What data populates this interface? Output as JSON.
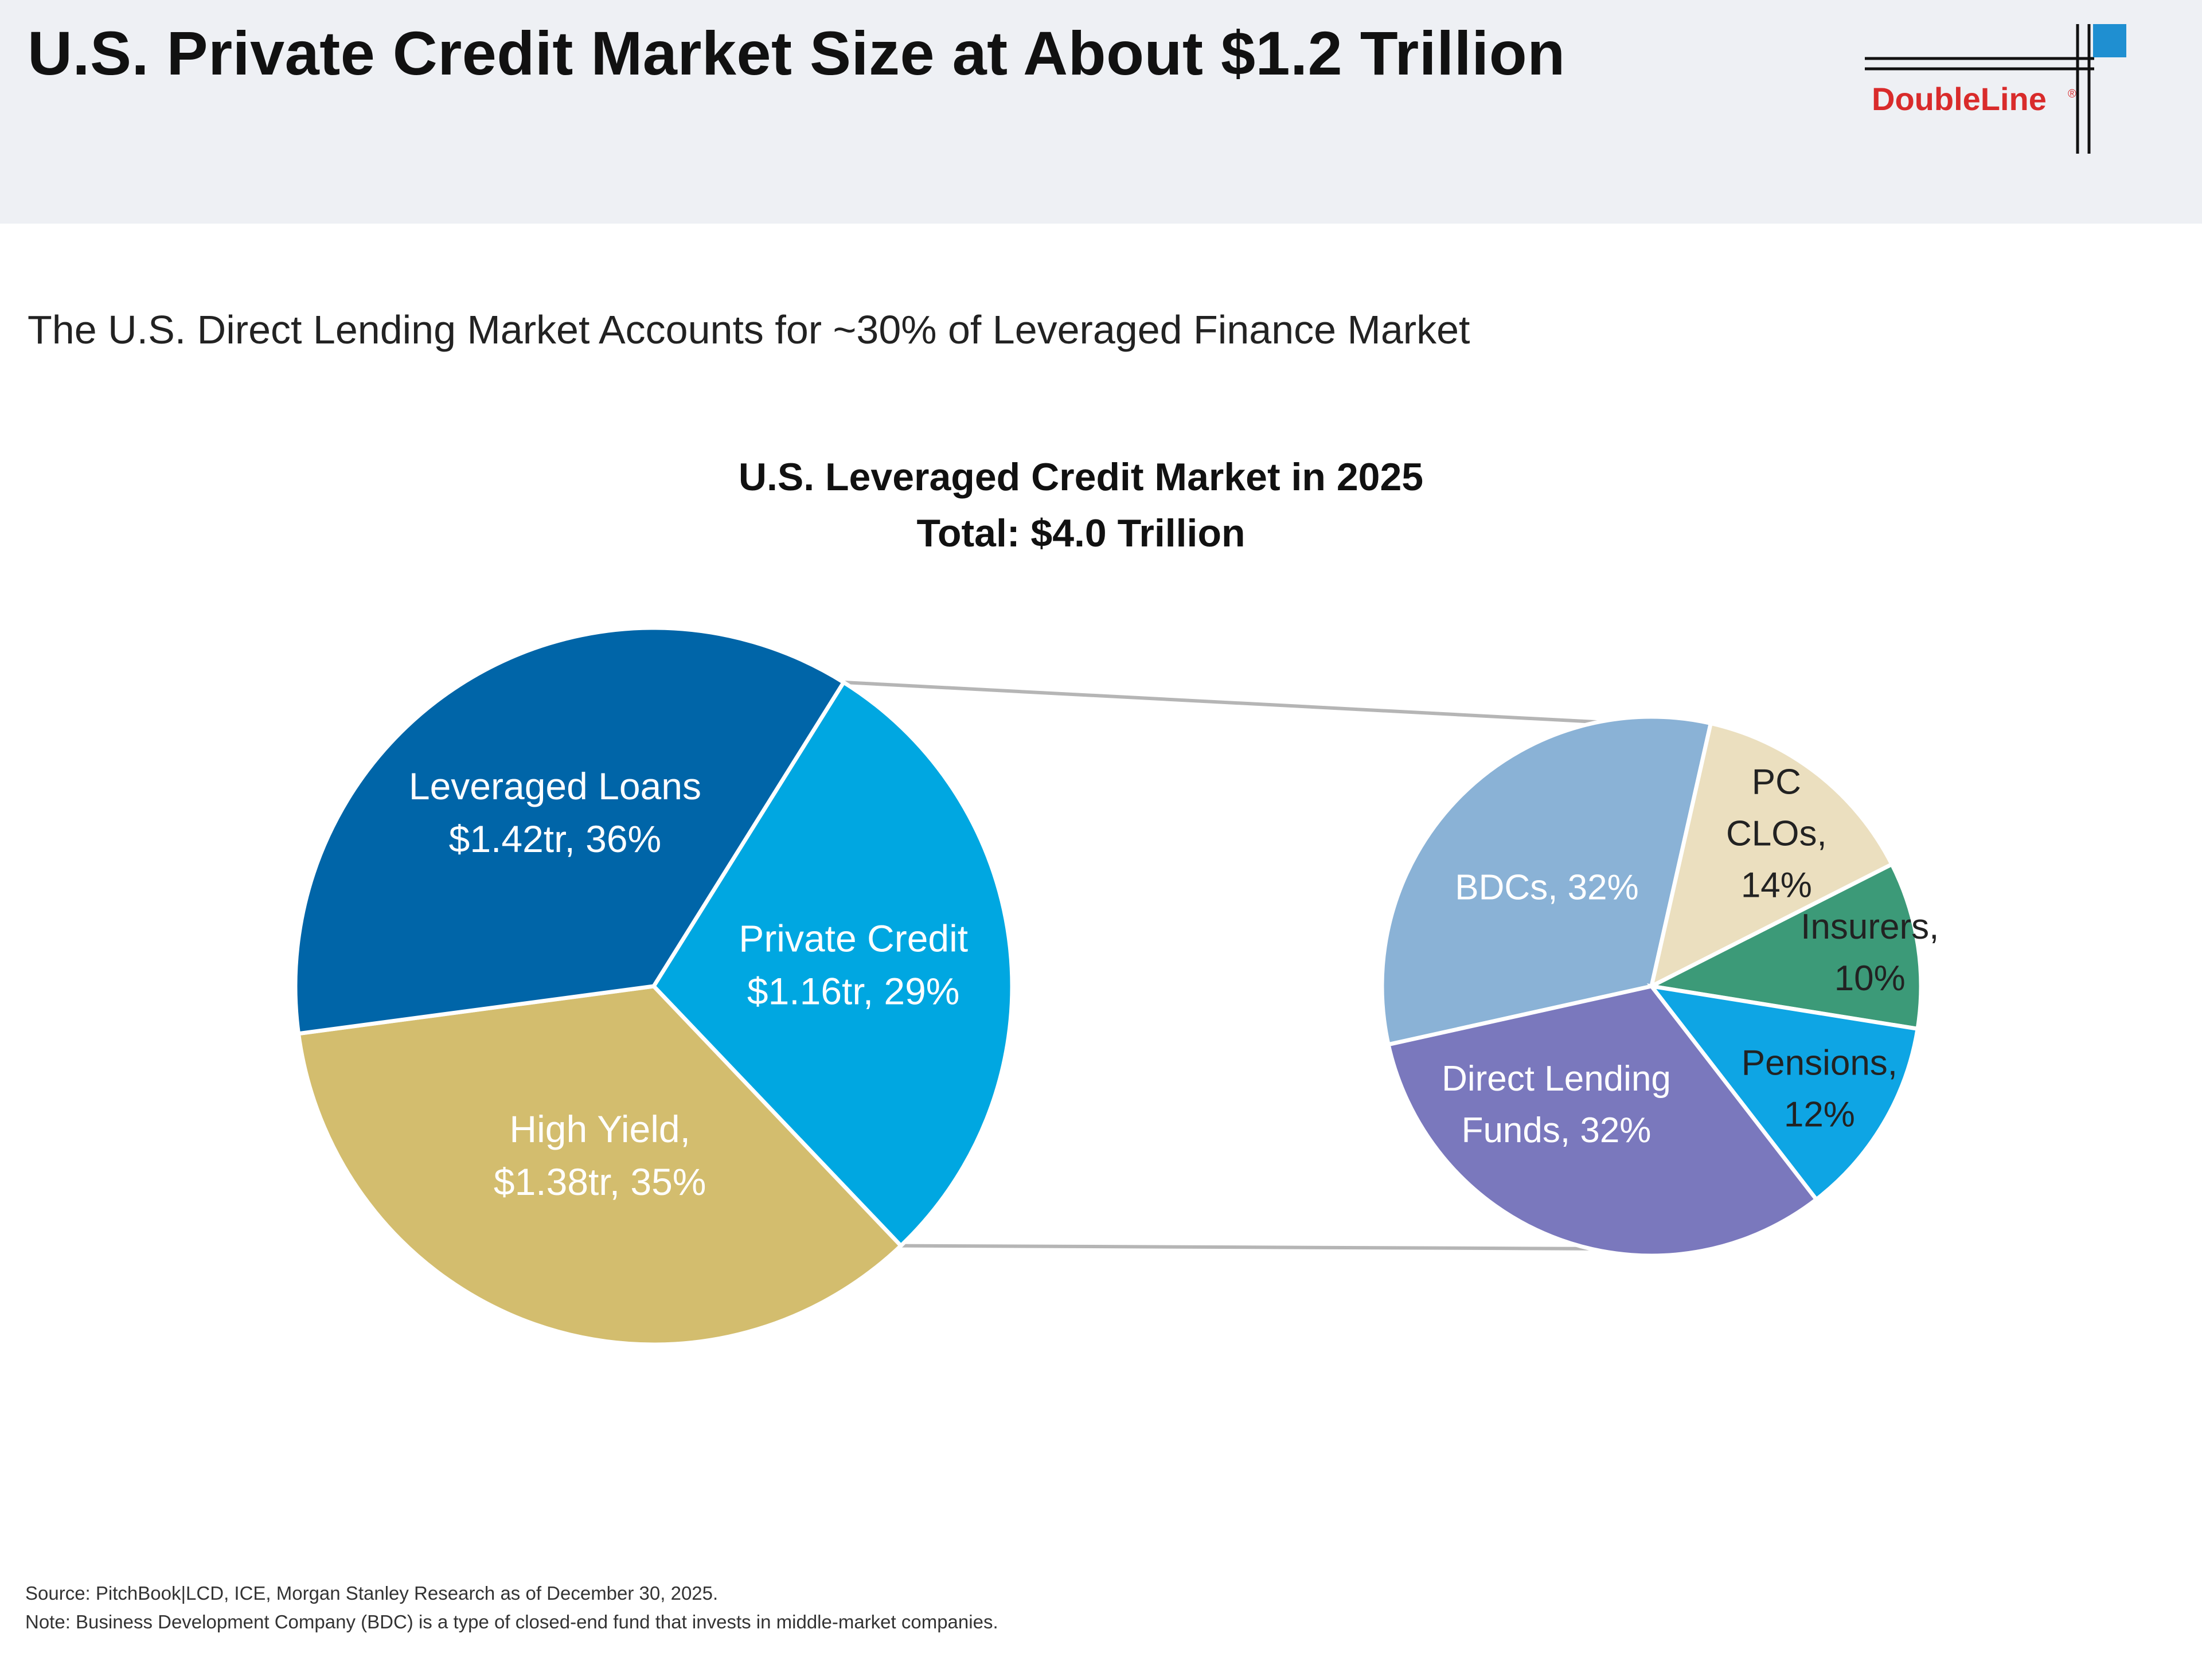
{
  "header": {
    "title": "U.S. Private Credit Market Size at About $1.2 Trillion",
    "logo_text": "DoubleLine",
    "logo_mark": "®"
  },
  "subtitle": "The U.S. Direct Lending Market Accounts for ~30% of Leveraged Finance Market",
  "colors": {
    "leveraged_loans": "#0065a8",
    "private_credit": "#00a7e1",
    "high_yield": "#d3bd6e",
    "bdcs": "#8ab2d6",
    "pc_clos": "#ebdfbf",
    "insurers": "#3c9a78",
    "pensions": "#0ea5e4",
    "direct_lending": "#7a78bd",
    "logo_red": "#d92b2b",
    "logo_blue": "#1f8fd1"
  },
  "chart_data": [
    {
      "type": "pie",
      "title": "U.S. Leveraged Credit Market in 2025",
      "subtitle": "Total: $4.0 Trillion",
      "slices": [
        {
          "name": "Private Credit",
          "value_tr": 1.16,
          "percent": 29,
          "label_lines": [
            "Private Credit",
            "$1.16tr, 29%"
          ]
        },
        {
          "name": "High Yield",
          "value_tr": 1.38,
          "percent": 35,
          "label_lines": [
            "High Yield,",
            "$1.38tr, 35%"
          ]
        },
        {
          "name": "Leveraged Loans",
          "value_tr": 1.42,
          "percent": 36,
          "label_lines": [
            "Leveraged Loans",
            "$1.42tr, 36%"
          ]
        }
      ]
    },
    {
      "type": "pie",
      "breakdown_of": "Private Credit",
      "slices": [
        {
          "name": "BDCs",
          "percent": 32,
          "label_lines": [
            "BDCs, 32%"
          ]
        },
        {
          "name": "PC CLOs",
          "percent": 14,
          "label_lines": [
            "PC",
            "CLOs,",
            "14%"
          ]
        },
        {
          "name": "Insurers",
          "percent": 10,
          "label_lines": [
            "Insurers,",
            "10%"
          ]
        },
        {
          "name": "Pensions",
          "percent": 12,
          "label_lines": [
            "Pensions,",
            "12%"
          ]
        },
        {
          "name": "Direct Lending Funds",
          "percent": 32,
          "label_lines": [
            "Direct Lending",
            "Funds, 32%"
          ]
        }
      ]
    }
  ],
  "footnotes": {
    "source": "Source: PitchBook|LCD, ICE, Morgan Stanley Research as of December 30, 2025.",
    "note": "Note: Business Development Company (BDC) is a type of closed-end fund that invests in middle-market companies."
  }
}
